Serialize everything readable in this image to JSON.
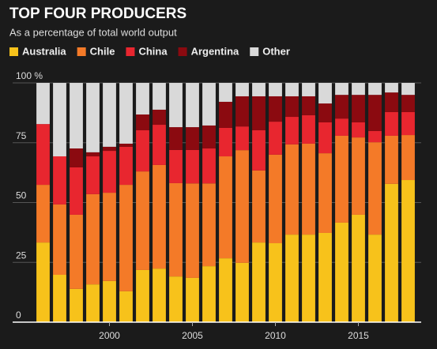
{
  "chart_data": {
    "type": "stacked_bar",
    "title": "TOP FOUR PRODUCERS",
    "subtitle": "As a percentage of total world output",
    "x": [
      1996,
      1997,
      1998,
      1999,
      2000,
      2001,
      2002,
      2003,
      2004,
      2005,
      2006,
      2007,
      2008,
      2009,
      2010,
      2011,
      2012,
      2013,
      2014,
      2015,
      2016,
      2017,
      2018
    ],
    "xlim": [
      1995.5,
      2018.5
    ],
    "xticks": [
      2000,
      2005,
      2010,
      2015
    ],
    "ylim": [
      0,
      100
    ],
    "yticks": [
      0,
      25,
      50,
      75,
      {
        "value": 100,
        "label": "100 %"
      }
    ],
    "grid": true,
    "series": [
      {
        "name": "Australia",
        "color": "#f7c21b",
        "values": [
          33.3,
          19.8,
          13.9,
          15.8,
          17.2,
          12.9,
          21.8,
          22.4,
          19.1,
          18.5,
          23.4,
          26.7,
          24.8,
          33.3,
          33.0,
          36.6,
          36.6,
          37.3,
          41.6,
          44.9,
          36.6,
          57.8,
          59.4
        ]
      },
      {
        "name": "Chile",
        "color": "#f47a28",
        "values": [
          24.1,
          29.4,
          31.0,
          37.7,
          36.9,
          44.5,
          41.2,
          43.3,
          39.0,
          39.5,
          34.6,
          42.6,
          47.1,
          30.1,
          37.0,
          37.7,
          38.0,
          33.3,
          36.3,
          32.3,
          38.6,
          20.1,
          18.8
        ]
      },
      {
        "name": "China",
        "color": "#e8262f",
        "values": [
          25.4,
          20.1,
          19.8,
          15.8,
          17.5,
          15.9,
          17.2,
          16.8,
          13.9,
          14.0,
          14.6,
          11.9,
          9.9,
          16.8,
          13.8,
          11.5,
          11.9,
          12.9,
          7.2,
          6.3,
          4.7,
          9.9,
          9.6
        ]
      },
      {
        "name": "Argentina",
        "color": "#8b0a10",
        "values": [
          0,
          0,
          7.9,
          1.7,
          1.7,
          1.3,
          6.6,
          6.3,
          9.5,
          9.5,
          9.6,
          10.9,
          12.6,
          14.2,
          10.6,
          8.6,
          7.9,
          7.9,
          9.9,
          11.5,
          15.1,
          8.2,
          7.2
        ]
      },
      {
        "name": "Other",
        "color": "#d9d9d9",
        "values": [
          17.2,
          30.7,
          27.4,
          29.0,
          26.7,
          25.4,
          13.2,
          11.2,
          18.5,
          18.5,
          17.8,
          7.9,
          5.6,
          5.6,
          5.6,
          5.6,
          5.6,
          8.6,
          5.0,
          5.0,
          5.0,
          4.0,
          5.0
        ]
      }
    ]
  }
}
